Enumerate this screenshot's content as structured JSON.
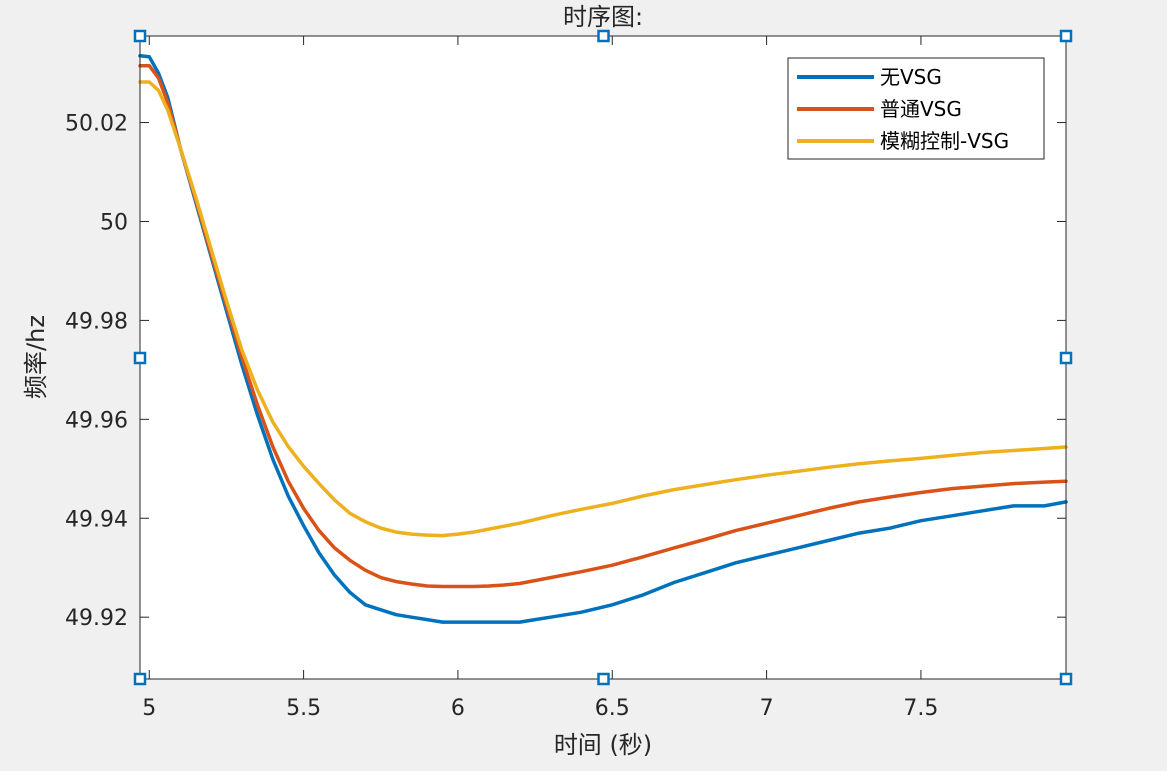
{
  "chart_data": {
    "type": "line",
    "title": "时序图:",
    "xlabel": "时间 (秒)",
    "ylabel": "频率/hz",
    "xlim": [
      4.97,
      7.97
    ],
    "ylim": [
      49.9075,
      50.0375
    ],
    "xticks": [
      5,
      5.5,
      6,
      6.5,
      7,
      7.5
    ],
    "xtick_labels": [
      "5",
      "5.5",
      "6",
      "6.5",
      "7",
      "7.5"
    ],
    "yticks": [
      49.92,
      49.94,
      49.96,
      49.98,
      50,
      50.02
    ],
    "ytick_labels": [
      "49.92",
      "49.94",
      "49.96",
      "49.98",
      "50",
      "50.02"
    ],
    "grid": false,
    "legend_position": "top-right",
    "series": [
      {
        "name": "无VSG",
        "color": "#0072bd",
        "x": [
          4.97,
          5.0,
          5.03,
          5.06,
          5.1,
          5.15,
          5.2,
          5.25,
          5.3,
          5.35,
          5.4,
          5.45,
          5.5,
          5.55,
          5.6,
          5.65,
          5.7,
          5.75,
          5.8,
          5.85,
          5.9,
          5.95,
          6.0,
          6.05,
          6.1,
          6.15,
          6.2,
          6.25,
          6.3,
          6.4,
          6.5,
          6.6,
          6.7,
          6.8,
          6.9,
          7.0,
          7.1,
          7.2,
          7.3,
          7.4,
          7.5,
          7.6,
          7.7,
          7.8,
          7.9,
          7.97
        ],
        "y": [
          50.0335,
          50.0333,
          50.03,
          50.025,
          50.015,
          50.004,
          49.993,
          49.982,
          49.971,
          49.961,
          49.952,
          49.9445,
          49.9385,
          49.933,
          49.9285,
          49.925,
          49.9225,
          49.9215,
          49.9205,
          49.92,
          49.9195,
          49.919,
          49.919,
          49.919,
          49.919,
          49.919,
          49.919,
          49.9195,
          49.92,
          49.921,
          49.9225,
          49.9245,
          49.927,
          49.929,
          49.931,
          49.9325,
          49.934,
          49.9355,
          49.937,
          49.938,
          49.9395,
          49.9405,
          49.9415,
          49.9425,
          49.9425,
          49.9433
        ]
      },
      {
        "name": "普通VSG",
        "color": "#d95319",
        "x": [
          4.97,
          5.0,
          5.03,
          5.06,
          5.1,
          5.15,
          5.2,
          5.25,
          5.3,
          5.35,
          5.4,
          5.45,
          5.5,
          5.55,
          5.6,
          5.65,
          5.7,
          5.75,
          5.8,
          5.85,
          5.9,
          5.95,
          6.0,
          6.05,
          6.1,
          6.15,
          6.2,
          6.3,
          6.4,
          6.5,
          6.6,
          6.7,
          6.8,
          6.9,
          7.0,
          7.1,
          7.2,
          7.3,
          7.4,
          7.5,
          7.6,
          7.7,
          7.8,
          7.9,
          7.97
        ],
        "y": [
          50.0315,
          50.0315,
          50.029,
          50.024,
          50.015,
          50.0045,
          49.9935,
          49.983,
          49.9725,
          49.963,
          49.9545,
          49.9475,
          49.942,
          49.9375,
          49.934,
          49.9315,
          49.9295,
          49.928,
          49.9272,
          49.9267,
          49.9263,
          49.9262,
          49.9262,
          49.9262,
          49.9263,
          49.9265,
          49.9268,
          49.928,
          49.9292,
          49.9305,
          49.9322,
          49.934,
          49.9357,
          49.9375,
          49.939,
          49.9405,
          49.942,
          49.9433,
          49.9443,
          49.9452,
          49.946,
          49.9465,
          49.947,
          49.9473,
          49.9475
        ]
      },
      {
        "name": "模糊控制-VSG",
        "color": "#edb120",
        "x": [
          4.97,
          5.0,
          5.03,
          5.06,
          5.1,
          5.15,
          5.2,
          5.25,
          5.3,
          5.35,
          5.4,
          5.45,
          5.5,
          5.55,
          5.6,
          5.65,
          5.7,
          5.75,
          5.8,
          5.85,
          5.9,
          5.95,
          6.0,
          6.05,
          6.1,
          6.2,
          6.3,
          6.4,
          6.5,
          6.6,
          6.7,
          6.8,
          6.9,
          7.0,
          7.1,
          7.2,
          7.3,
          7.4,
          7.5,
          7.6,
          7.7,
          7.8,
          7.9,
          7.97
        ],
        "y": [
          50.0282,
          50.0282,
          50.0265,
          50.0225,
          50.015,
          50.005,
          49.9945,
          49.984,
          49.974,
          49.966,
          49.9595,
          49.9545,
          49.9505,
          49.947,
          49.9437,
          49.941,
          49.9393,
          49.938,
          49.9372,
          49.9368,
          49.9366,
          49.9365,
          49.9368,
          49.9372,
          49.9378,
          49.939,
          49.9405,
          49.9418,
          49.943,
          49.9445,
          49.9458,
          49.9468,
          49.9478,
          49.9487,
          49.9495,
          49.9503,
          49.951,
          49.9516,
          49.9521,
          49.9527,
          49.9533,
          49.9537,
          49.9541,
          49.9544
        ]
      }
    ]
  }
}
